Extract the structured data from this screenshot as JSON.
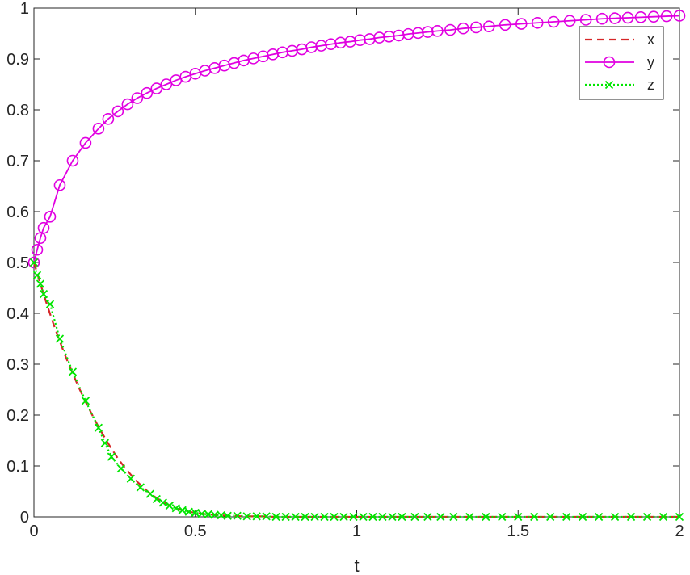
{
  "chart_data": {
    "type": "line",
    "title": "",
    "xlabel": "t",
    "ylabel": "",
    "xlim": [
      0,
      2
    ],
    "ylim": [
      0,
      1
    ],
    "xticks": [
      0,
      0.5,
      1,
      1.5,
      2
    ],
    "xtick_labels": [
      "0",
      "0.5",
      "1",
      "1.5",
      "2"
    ],
    "yticks": [
      0,
      0.1,
      0.2,
      0.3,
      0.4,
      0.5,
      0.6,
      0.7,
      0.8,
      0.9,
      1
    ],
    "ytick_labels": [
      "0",
      "0.1",
      "0.2",
      "0.3",
      "0.4",
      "0.5",
      "0.6",
      "0.7",
      "0.8",
      "0.9",
      "1"
    ],
    "grid": false,
    "legend_position": "top-right",
    "series": [
      {
        "name": "x",
        "color": "#d62728",
        "line_style": "dashed",
        "marker": "none",
        "x": [
          0,
          0.02,
          0.04,
          0.06,
          0.08,
          0.1,
          0.12,
          0.14,
          0.16,
          0.18,
          0.2,
          0.22,
          0.24,
          0.26,
          0.28,
          0.3,
          0.32,
          0.34,
          0.36,
          0.38,
          0.4,
          0.42,
          0.44,
          0.46,
          0.48,
          0.5,
          0.52,
          0.54,
          0.56,
          0.58,
          0.6,
          0.65,
          0.7,
          0.75,
          0.8,
          0.9,
          1.0,
          1.1,
          1.2,
          1.3,
          1.4,
          1.5,
          1.6,
          1.7,
          1.8,
          1.9,
          2.0
        ],
        "values": [
          0.5,
          0.458,
          0.418,
          0.38,
          0.345,
          0.312,
          0.282,
          0.253,
          0.226,
          0.201,
          0.177,
          0.155,
          0.134,
          0.115,
          0.098,
          0.083,
          0.069,
          0.057,
          0.046,
          0.037,
          0.029,
          0.023,
          0.017,
          0.013,
          0.01,
          0.008,
          0.006,
          0.005,
          0.004,
          0.003,
          0.002,
          0.001,
          0.001,
          0,
          0,
          0,
          0,
          0,
          0,
          0,
          0,
          0,
          0,
          0,
          0,
          0,
          0
        ]
      },
      {
        "name": "y",
        "color": "#e100e1",
        "line_style": "solid",
        "marker": "circle",
        "x": [
          0,
          0.01,
          0.02,
          0.03,
          0.05,
          0.08,
          0.12,
          0.16,
          0.2,
          0.23,
          0.26,
          0.29,
          0.32,
          0.35,
          0.38,
          0.41,
          0.44,
          0.47,
          0.5,
          0.53,
          0.56,
          0.59,
          0.62,
          0.65,
          0.68,
          0.71,
          0.74,
          0.77,
          0.8,
          0.83,
          0.86,
          0.89,
          0.92,
          0.95,
          0.98,
          1.01,
          1.04,
          1.07,
          1.1,
          1.13,
          1.16,
          1.19,
          1.22,
          1.25,
          1.29,
          1.33,
          1.37,
          1.41,
          1.46,
          1.51,
          1.56,
          1.61,
          1.66,
          1.71,
          1.76,
          1.8,
          1.84,
          1.88,
          1.92,
          1.96,
          2.0
        ],
        "values": [
          0.5,
          0.525,
          0.548,
          0.568,
          0.59,
          0.652,
          0.7,
          0.735,
          0.763,
          0.782,
          0.797,
          0.811,
          0.823,
          0.833,
          0.842,
          0.85,
          0.858,
          0.865,
          0.871,
          0.877,
          0.882,
          0.887,
          0.892,
          0.897,
          0.901,
          0.905,
          0.909,
          0.913,
          0.916,
          0.919,
          0.923,
          0.926,
          0.929,
          0.932,
          0.934,
          0.937,
          0.939,
          0.942,
          0.944,
          0.946,
          0.949,
          0.951,
          0.953,
          0.955,
          0.957,
          0.96,
          0.962,
          0.964,
          0.967,
          0.969,
          0.971,
          0.973,
          0.975,
          0.977,
          0.979,
          0.98,
          0.981,
          0.982,
          0.983,
          0.984,
          0.985
        ]
      },
      {
        "name": "z",
        "color": "#00e600",
        "line_style": "dotted",
        "marker": "x",
        "x": [
          0,
          0.01,
          0.02,
          0.03,
          0.05,
          0.08,
          0.12,
          0.16,
          0.2,
          0.22,
          0.24,
          0.27,
          0.3,
          0.33,
          0.36,
          0.38,
          0.4,
          0.42,
          0.44,
          0.46,
          0.48,
          0.5,
          0.52,
          0.54,
          0.56,
          0.58,
          0.6,
          0.63,
          0.66,
          0.69,
          0.72,
          0.75,
          0.78,
          0.81,
          0.84,
          0.87,
          0.9,
          0.93,
          0.96,
          0.99,
          1.02,
          1.05,
          1.08,
          1.11,
          1.14,
          1.18,
          1.22,
          1.26,
          1.3,
          1.35,
          1.4,
          1.45,
          1.5,
          1.55,
          1.6,
          1.65,
          1.7,
          1.75,
          1.8,
          1.85,
          1.9,
          1.95,
          2.0
        ],
        "values": [
          0.5,
          0.475,
          0.458,
          0.438,
          0.418,
          0.35,
          0.285,
          0.228,
          0.175,
          0.145,
          0.118,
          0.095,
          0.075,
          0.058,
          0.045,
          0.035,
          0.028,
          0.022,
          0.017,
          0.013,
          0.01,
          0.008,
          0.006,
          0.005,
          0.004,
          0.003,
          0.002,
          0.002,
          0.001,
          0.001,
          0.001,
          0,
          0,
          0,
          0,
          0,
          0,
          0,
          0,
          0,
          0,
          0,
          0,
          0,
          0,
          0,
          0,
          0,
          0,
          0,
          0,
          0,
          0,
          0,
          0,
          0,
          0,
          0,
          0,
          0,
          0,
          0,
          0
        ]
      }
    ]
  }
}
